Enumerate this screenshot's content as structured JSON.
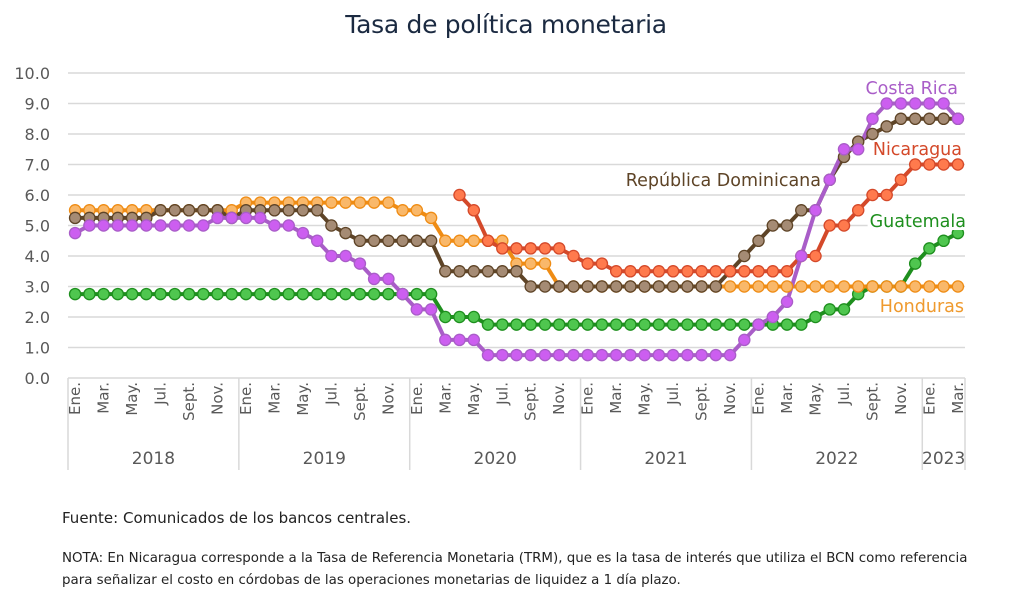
{
  "chart_data": {
    "type": "line",
    "title": "Tasa de política monetaria",
    "xlabel": "",
    "ylabel": "",
    "ylim": [
      0,
      10
    ],
    "yticks": [
      "0.0",
      "1.0",
      "2.0",
      "3.0",
      "4.0",
      "5.0",
      "6.0",
      "7.0",
      "8.0",
      "9.0",
      "10.0"
    ],
    "grid": true,
    "legend": "inline labels at right end of series",
    "month_tick_labels": [
      "Ene.",
      "Mar.",
      "May.",
      "Jul.",
      "Sept.",
      "Nov."
    ],
    "years": [
      {
        "label": "2018",
        "months": 12
      },
      {
        "label": "2019",
        "months": 12
      },
      {
        "label": "2020",
        "months": 12
      },
      {
        "label": "2021",
        "months": 12
      },
      {
        "label": "2022",
        "months": 12
      },
      {
        "label": "2023",
        "months": 3
      }
    ],
    "x_start": "Ene. 2018",
    "x_end": "Mar. 2023",
    "series": [
      {
        "name": "Guatemala",
        "color": "#1e8f1e",
        "marker_color": "#4fc64f",
        "label_color": "#1e8f1e",
        "values": [
          2.75,
          2.75,
          2.75,
          2.75,
          2.75,
          2.75,
          2.75,
          2.75,
          2.75,
          2.75,
          2.75,
          2.75,
          2.75,
          2.75,
          2.75,
          2.75,
          2.75,
          2.75,
          2.75,
          2.75,
          2.75,
          2.75,
          2.75,
          2.75,
          2.75,
          2.75,
          2.0,
          2.0,
          2.0,
          1.75,
          1.75,
          1.75,
          1.75,
          1.75,
          1.75,
          1.75,
          1.75,
          1.75,
          1.75,
          1.75,
          1.75,
          1.75,
          1.75,
          1.75,
          1.75,
          1.75,
          1.75,
          1.75,
          1.75,
          1.75,
          1.75,
          1.75,
          2.0,
          2.25,
          2.25,
          2.75,
          3.0,
          3.0,
          3.0,
          3.75,
          4.25,
          4.5,
          4.75
        ]
      },
      {
        "name": "Honduras",
        "color": "#ef8c14",
        "marker_color": "#f9b86a",
        "label_color": "#ef9a2e",
        "values": [
          5.5,
          5.5,
          5.5,
          5.5,
          5.5,
          5.5,
          5.5,
          5.5,
          5.5,
          5.5,
          5.5,
          5.5,
          5.75,
          5.75,
          5.75,
          5.75,
          5.75,
          5.75,
          5.75,
          5.75,
          5.75,
          5.75,
          5.75,
          5.5,
          5.5,
          5.25,
          4.5,
          4.5,
          4.5,
          4.5,
          4.5,
          3.75,
          3.75,
          3.75,
          3.0,
          3.0,
          3.0,
          3.0,
          3.0,
          3.0,
          3.0,
          3.0,
          3.0,
          3.0,
          3.0,
          3.0,
          3.0,
          3.0,
          3.0,
          3.0,
          3.0,
          3.0,
          3.0,
          3.0,
          3.0,
          3.0,
          3.0,
          3.0,
          3.0,
          3.0,
          3.0,
          3.0,
          3.0
        ]
      },
      {
        "name": "República Dominicana",
        "color": "#5e4427",
        "marker_color": "#a58b74",
        "label_color": "#5e4427",
        "values": [
          5.25,
          5.25,
          5.25,
          5.25,
          5.25,
          5.25,
          5.5,
          5.5,
          5.5,
          5.5,
          5.5,
          5.25,
          5.5,
          5.5,
          5.5,
          5.5,
          5.5,
          5.5,
          5.0,
          4.75,
          4.5,
          4.5,
          4.5,
          4.5,
          4.5,
          4.5,
          3.5,
          3.5,
          3.5,
          3.5,
          3.5,
          3.5,
          3.0,
          3.0,
          3.0,
          3.0,
          3.0,
          3.0,
          3.0,
          3.0,
          3.0,
          3.0,
          3.0,
          3.0,
          3.0,
          3.0,
          3.5,
          4.0,
          4.5,
          5.0,
          5.0,
          5.5,
          5.5,
          6.5,
          7.25,
          7.75,
          8.0,
          8.25,
          8.5,
          8.5,
          8.5,
          8.5,
          8.5
        ]
      },
      {
        "name": "Nicaragua",
        "color": "#d4492a",
        "marker_color": "#ff7a4d",
        "label_color": "#d4492a",
        "values": [
          null,
          null,
          null,
          null,
          null,
          null,
          null,
          null,
          null,
          null,
          null,
          null,
          null,
          null,
          null,
          null,
          null,
          null,
          null,
          null,
          null,
          null,
          null,
          null,
          null,
          null,
          null,
          6.0,
          5.5,
          4.5,
          4.25,
          4.25,
          4.25,
          4.25,
          4.25,
          4.0,
          3.75,
          3.75,
          3.5,
          3.5,
          3.5,
          3.5,
          3.5,
          3.5,
          3.5,
          3.5,
          3.5,
          3.5,
          3.5,
          3.5,
          3.5,
          4.0,
          4.0,
          5.0,
          5.0,
          5.5,
          6.0,
          6.0,
          6.5,
          7.0,
          7.0,
          7.0,
          7.0
        ]
      },
      {
        "name": "Costa Rica",
        "color": "#a95dc8",
        "marker_color": "#cc5ef0",
        "label_color": "#a95dc8",
        "values": [
          4.75,
          5.0,
          5.0,
          5.0,
          5.0,
          5.0,
          5.0,
          5.0,
          5.0,
          5.0,
          5.25,
          5.25,
          5.25,
          5.25,
          5.0,
          5.0,
          4.75,
          4.5,
          4.0,
          4.0,
          3.75,
          3.25,
          3.25,
          2.75,
          2.25,
          2.25,
          1.25,
          1.25,
          1.25,
          0.75,
          0.75,
          0.75,
          0.75,
          0.75,
          0.75,
          0.75,
          0.75,
          0.75,
          0.75,
          0.75,
          0.75,
          0.75,
          0.75,
          0.75,
          0.75,
          0.75,
          0.75,
          1.25,
          1.75,
          2.0,
          2.5,
          4.0,
          5.5,
          6.5,
          7.5,
          7.5,
          8.5,
          9.0,
          9.0,
          9.0,
          9.0,
          9.0,
          8.5
        ]
      }
    ]
  },
  "title": "Tasa de política monetaria",
  "footer": {
    "source": "Fuente: Comunicados de los bancos centrales.",
    "note": "NOTA: En Nicaragua corresponde a la Tasa de Referencia Monetaria (TRM), que es la tasa de interés que utiliza el BCN como referencia para señalizar el costo en córdobas de las operaciones monetarias de liquidez a 1 día plazo."
  }
}
